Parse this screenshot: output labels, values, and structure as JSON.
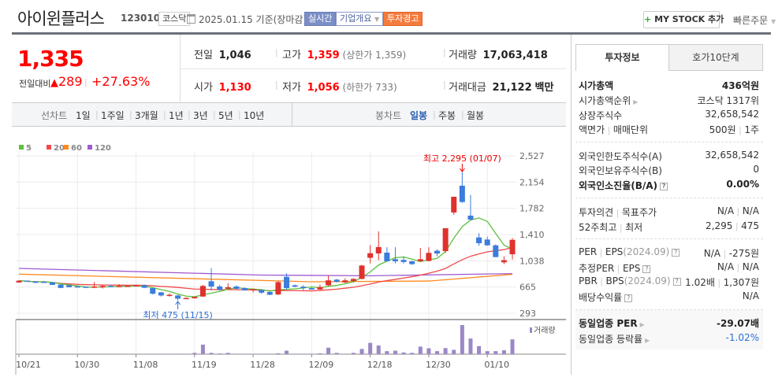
{
  "header": {
    "title": "아이윈플러스",
    "code": "123010",
    "market": "코스닥",
    "date": "2025.01.15",
    "basis": "기준(장마감)",
    "realtime": "실시간",
    "overview": "기업개요",
    "warning": "투자경고",
    "mystock_plus": "+",
    "mystock": "MY STOCK 추가",
    "quick_order": "빠른주문"
  },
  "price": {
    "current": "1,335",
    "change_label": "전일대비",
    "change": "289",
    "rate": "+27.63%"
  },
  "stats": {
    "prev": {
      "label": "전일",
      "value": "1,046"
    },
    "high": {
      "label": "고가",
      "value": "1,359",
      "note": "(상한가 1,359)"
    },
    "volume": {
      "label": "거래량",
      "value": "17,063,418"
    },
    "open": {
      "label": "시가",
      "value": "1,130"
    },
    "low": {
      "label": "저가",
      "value": "1,056",
      "note": "(하한가 733)"
    },
    "amount": {
      "label": "거래대금",
      "value": "21,122",
      "unit": "백만"
    }
  },
  "toolbar": {
    "line_label": "선차트",
    "line_periods": [
      "1일",
      "1주일",
      "3개월",
      "1년",
      "3년",
      "5년",
      "10년"
    ],
    "candle_label": "봉차트",
    "candle_periods": [
      "일봉",
      "주봉",
      "월봉"
    ],
    "active": "일봉"
  },
  "right_panel": {
    "tabs": [
      "투자정보",
      "호가10단계"
    ],
    "rows": [
      {
        "label": "시가총액",
        "value": "436억원",
        "bold": true
      },
      {
        "label": "시가총액순위",
        "arrow": true,
        "value": "코스닥 1317위"
      },
      {
        "label": "상장주식수",
        "value": "32,658,542"
      },
      {
        "label": "액면가",
        "label2": "매매단위",
        "value": "500원",
        "value2": "1주"
      },
      {
        "label": "외국인한도주식수(A)",
        "value": "32,658,542"
      },
      {
        "label": "외국인보유주식수(B)",
        "value": "0"
      },
      {
        "label": "외국인소진율(B/A)",
        "help": true,
        "value": "0.00%",
        "bold": true
      },
      {
        "label": "투자의견",
        "label2": "목표주가",
        "value": "N/A",
        "value2": "N/A"
      },
      {
        "label": "52주최고",
        "label2": "최저",
        "value": "2,295",
        "value2": "475"
      },
      {
        "label": "PER",
        "label2": "EPS",
        "sub": "(2024.09)",
        "help": true,
        "value": "N/A",
        "value2": "-275원"
      },
      {
        "label": "추정PER",
        "label2": "EPS",
        "help": true,
        "value": "N/A",
        "value2": "N/A"
      },
      {
        "label": "PBR",
        "label2": "BPS",
        "sub": "(2024.09)",
        "help": true,
        "value": "1.02배",
        "value2": "1,307원"
      },
      {
        "label": "배당수익률",
        "help": true,
        "value": "N/A"
      },
      {
        "label": "동일업종 PER",
        "arrow": true,
        "value": "-29.07배",
        "bold": true
      },
      {
        "label": "동일업종 등락률",
        "arrow": true,
        "value": "-1.02%",
        "value_color": "#2a6fdb"
      }
    ]
  },
  "chart_data": {
    "type": "candlestick",
    "legend": [
      "5",
      "20",
      "60",
      "120"
    ],
    "legend_colors": [
      "#5cc13f",
      "#f04a4a",
      "#ff8a1f",
      "#a05ad0"
    ],
    "volume_label": "거래량",
    "up_color": "#e0312c",
    "down_color": "#3b7ddd",
    "volume_color": "#9b88c6",
    "yticks": [
      "2,527",
      "2,154",
      "1,782",
      "1,410",
      "1,038",
      "665",
      "293"
    ],
    "ylim": [
      293,
      2527
    ],
    "xtick_labels": [
      "10/21",
      "10/30",
      "11/08",
      "11/19",
      "11/28",
      "12/09",
      "12/18",
      "12/30",
      "01/10"
    ],
    "high_annotation": "최고 2,295 (01/07)",
    "low_annotation": "최저 475 (11/15)",
    "dates": [
      "10/21",
      "10/22",
      "10/23",
      "10/24",
      "10/25",
      "10/28",
      "10/29",
      "10/30",
      "10/31",
      "11/01",
      "11/04",
      "11/05",
      "11/06",
      "11/07",
      "11/08",
      "11/11",
      "11/12",
      "11/13",
      "11/14",
      "11/15",
      "11/18",
      "11/19",
      "11/20",
      "11/21",
      "11/22",
      "11/25",
      "11/26",
      "11/27",
      "11/28",
      "11/29",
      "12/02",
      "12/03",
      "12/04",
      "12/05",
      "12/06",
      "12/09",
      "12/10",
      "12/11",
      "12/12",
      "12/13",
      "12/16",
      "12/17",
      "12/18",
      "12/19",
      "12/20",
      "12/23",
      "12/24",
      "12/26",
      "12/27",
      "12/30",
      "01/02",
      "01/03",
      "01/06",
      "01/07",
      "01/08",
      "01/09",
      "01/10",
      "01/13",
      "01/14",
      "01/15"
    ],
    "ohlc": [
      [
        730,
        760,
        725,
        755
      ],
      [
        755,
        758,
        740,
        740
      ],
      [
        745,
        750,
        720,
        725
      ],
      [
        740,
        750,
        735,
        738
      ],
      [
        730,
        735,
        695,
        695
      ],
      [
        700,
        705,
        650,
        652
      ],
      [
        690,
        700,
        660,
        662
      ],
      [
        675,
        680,
        660,
        662
      ],
      [
        670,
        672,
        655,
        660
      ],
      [
        655,
        735,
        650,
        672
      ],
      [
        660,
        690,
        645,
        680
      ],
      [
        680,
        700,
        670,
        670
      ],
      [
        670,
        705,
        668,
        680
      ],
      [
        675,
        695,
        672,
        683
      ],
      [
        678,
        700,
        675,
        690
      ],
      [
        690,
        700,
        650,
        655
      ],
      [
        650,
        655,
        560,
        570
      ],
      [
        590,
        595,
        530,
        545
      ],
      [
        550,
        575,
        530,
        555
      ],
      [
        545,
        555,
        475,
        500
      ],
      [
        505,
        515,
        500,
        510
      ],
      [
        505,
        530,
        500,
        525
      ],
      [
        530,
        695,
        525,
        680
      ],
      [
        747,
        933,
        618,
        673
      ],
      [
        673,
        695,
        615,
        625
      ],
      [
        640,
        720,
        630,
        662
      ],
      [
        673,
        690,
        630,
        640
      ],
      [
        650,
        660,
        615,
        620
      ],
      [
        620,
        640,
        590,
        635
      ],
      [
        625,
        630,
        570,
        585
      ],
      [
        595,
        600,
        550,
        555
      ],
      [
        560,
        750,
        550,
        735
      ],
      [
        810,
        860,
        630,
        650
      ],
      [
        690,
        700,
        660,
        670
      ],
      [
        670,
        690,
        620,
        650
      ],
      [
        650,
        660,
        630,
        630
      ],
      [
        630,
        700,
        625,
        665
      ],
      [
        690,
        830,
        680,
        760
      ],
      [
        770,
        780,
        730,
        740
      ],
      [
        730,
        790,
        720,
        760
      ],
      [
        750,
        790,
        730,
        780
      ],
      [
        780,
        980,
        775,
        970
      ],
      [
        1080,
        1260,
        1000,
        1145
      ],
      [
        1142,
        1455,
        1045,
        1232
      ],
      [
        1153,
        1230,
        1030,
        1030
      ],
      [
        1060,
        1230,
        1000,
        1030
      ],
      [
        1050,
        1100,
        1000,
        1020
      ],
      [
        1030,
        1040,
        980,
        990
      ],
      [
        1030,
        1220,
        1030,
        1060
      ],
      [
        1035,
        1230,
        1030,
        1150
      ],
      [
        1180,
        1200,
        1100,
        1140
      ],
      [
        1175,
        1500,
        1150,
        1500
      ],
      [
        1723,
        1946,
        1690,
        1946
      ],
      [
        2103,
        2295,
        1860,
        1872
      ],
      [
        1678,
        1972,
        1610,
        1622
      ],
      [
        1369,
        1430,
        1250,
        1287
      ],
      [
        1339,
        1380,
        1250,
        1257
      ],
      [
        1257,
        1270,
        1090,
        1090
      ],
      [
        1016,
        1100,
        990,
        1046
      ],
      [
        1130,
        1359,
        1056,
        1335
      ]
    ],
    "volume_millions": [
      0.3,
      0.3,
      0.3,
      0.2,
      0.3,
      0.3,
      0.2,
      0.2,
      0.2,
      0.3,
      0.2,
      0.2,
      0.2,
      0.2,
      0.2,
      0.3,
      0.4,
      0.4,
      0.3,
      0.5,
      0.3,
      1.5,
      11,
      1.5,
      0.8,
      1.5,
      0.5,
      0.4,
      0.4,
      0.4,
      0.5,
      1,
      4,
      0.5,
      0.5,
      0.5,
      1,
      7.5,
      1.5,
      0.5,
      1.5,
      6,
      13,
      10,
      3.5,
      4,
      2,
      1.5,
      8.7,
      6.8,
      3.5,
      7,
      5,
      33.5,
      18,
      9.3,
      3.5,
      3.5,
      4.5,
      17.06
    ],
    "ma60": [
      {
        "date": "10/21",
        "value": 848
      },
      {
        "date": "12/09",
        "value": 740
      },
      {
        "date": "12/30",
        "value": 750
      },
      {
        "date": "01/15",
        "value": 845
      }
    ],
    "ma120": [
      {
        "date": "10/21",
        "value": 930
      },
      {
        "date": "11/29",
        "value": 835
      },
      {
        "date": "12/18",
        "value": 825
      },
      {
        "date": "01/15",
        "value": 855
      }
    ]
  }
}
